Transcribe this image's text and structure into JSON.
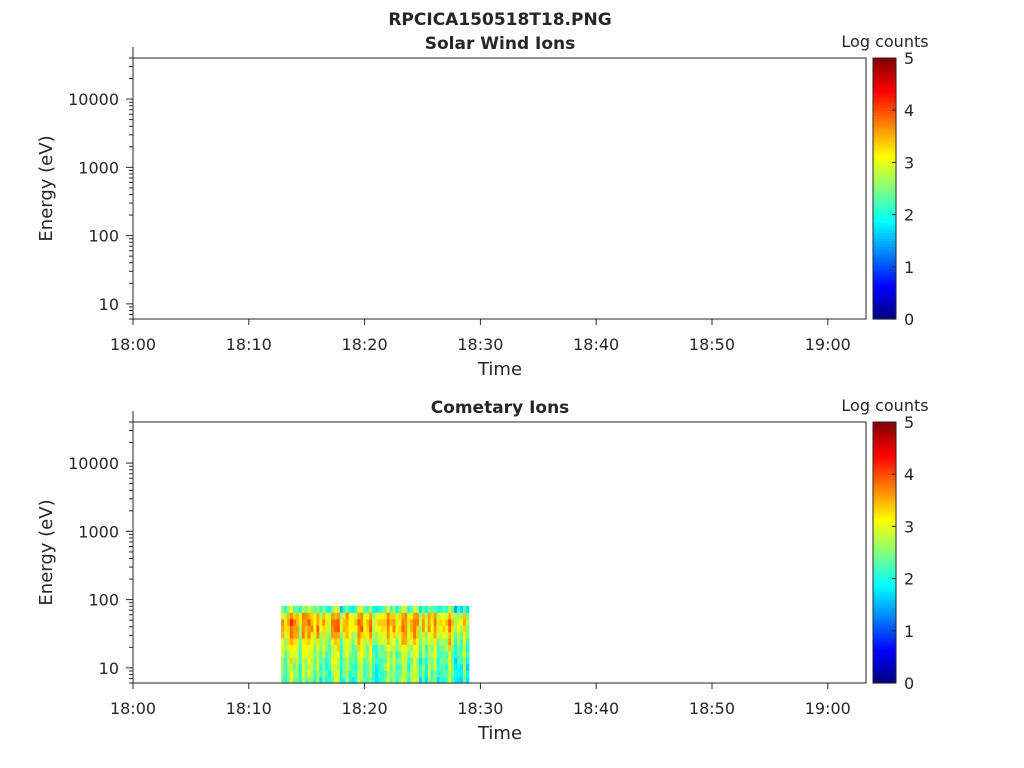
{
  "figure_title": "RPCICA150518T18.PNG",
  "chart_data": [
    {
      "type": "heatmap",
      "title": "Solar Wind Ions",
      "xlabel": "Time",
      "ylabel": "Energy (eV)",
      "x_ticks": [
        "18:00",
        "18:10",
        "18:20",
        "18:30",
        "18:40",
        "18:50",
        "19:00"
      ],
      "x_range_minutes": [
        0,
        63.3
      ],
      "y_scale": "log",
      "y_ticks": [
        "10",
        "100",
        "1000",
        "10000"
      ],
      "y_tick_values": [
        10,
        100,
        1000,
        10000
      ],
      "ylim": [
        6,
        40000
      ],
      "colorbar": {
        "label": "Log counts",
        "ticks": [
          "0",
          "1",
          "2",
          "3",
          "4",
          "5"
        ],
        "range": [
          0,
          5
        ],
        "colormap": "jet"
      },
      "data_blocks": []
    },
    {
      "type": "heatmap",
      "title": "Cometary Ions",
      "xlabel": "Time",
      "ylabel": "Energy (eV)",
      "x_ticks": [
        "18:00",
        "18:10",
        "18:20",
        "18:30",
        "18:40",
        "18:50",
        "19:00"
      ],
      "x_range_minutes": [
        0,
        63.3
      ],
      "y_scale": "log",
      "y_ticks": [
        "10",
        "100",
        "1000",
        "10000"
      ],
      "y_tick_values": [
        10,
        100,
        1000,
        10000
      ],
      "ylim": [
        6,
        40000
      ],
      "colorbar": {
        "label": "Log counts",
        "ticks": [
          "0",
          "1",
          "2",
          "3",
          "4",
          "5"
        ],
        "range": [
          0,
          5
        ],
        "colormap": "jet"
      },
      "data_blocks": [
        {
          "t_start_min": 12.8,
          "t_end_min": 29.0,
          "e_min": 6,
          "e_max": 81,
          "n_time_bins": 64,
          "n_energy_bins": 12,
          "mean_log_counts_by_energy_bin_low_to_high": [
            2.3,
            2.4,
            2.4,
            2.5,
            2.6,
            2.7,
            2.9,
            3.1,
            3.3,
            3.4,
            3.2,
            2.3
          ],
          "log_count_spread": 0.8
        }
      ]
    }
  ]
}
